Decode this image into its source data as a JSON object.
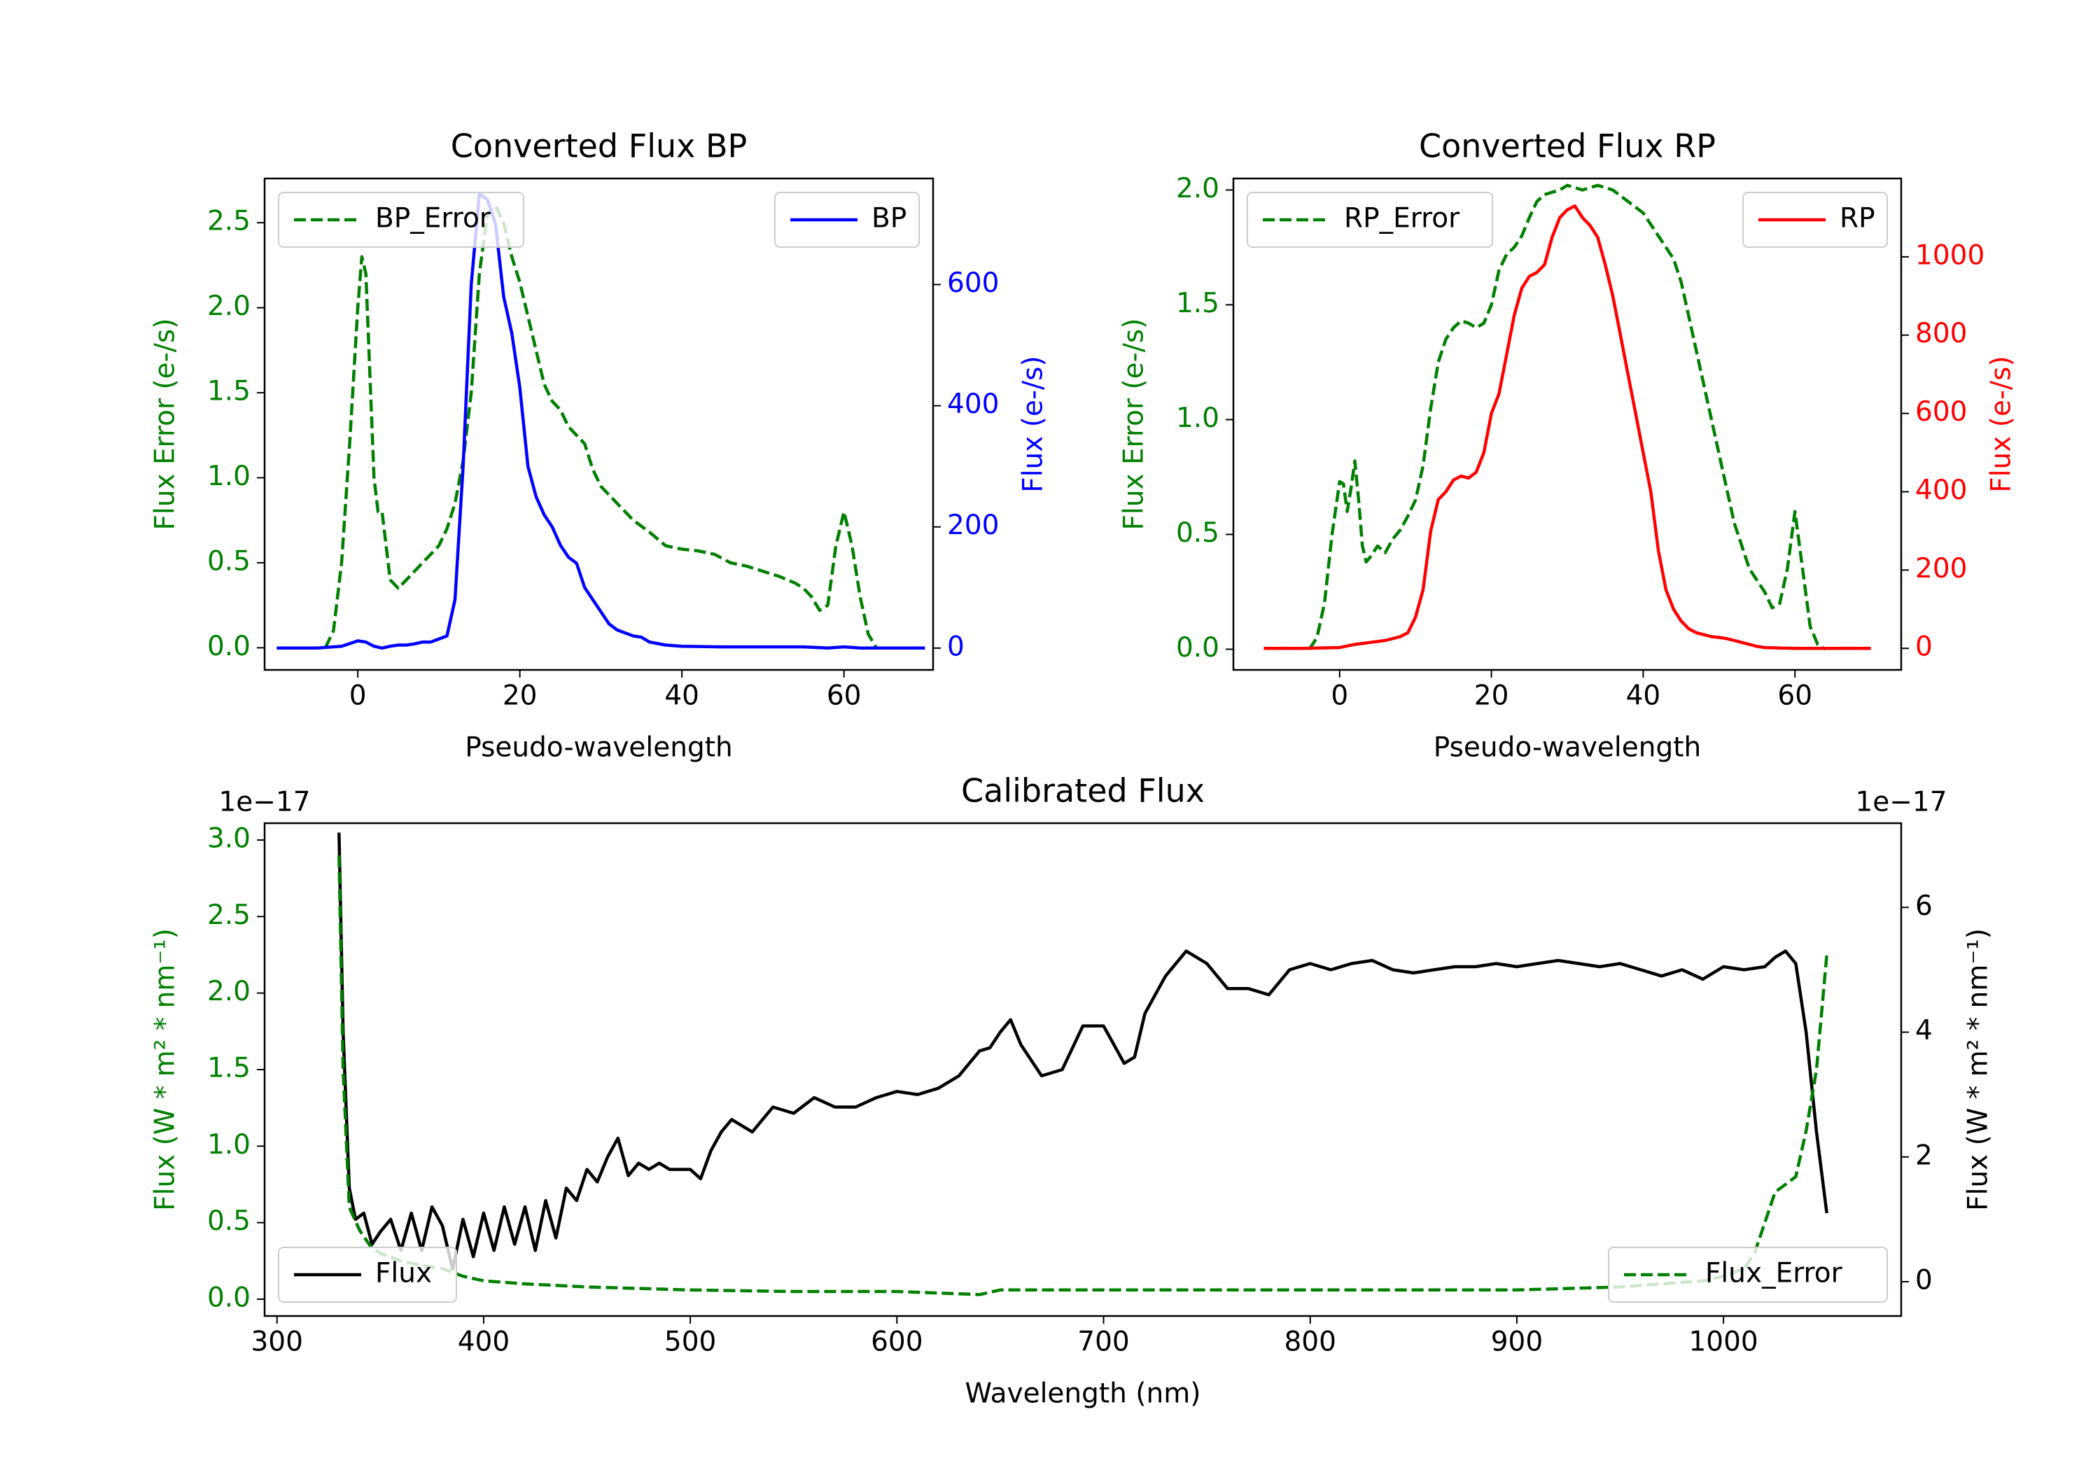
{
  "colors": {
    "error": "#008000",
    "bp": "#0000ff",
    "rp": "#ff0000",
    "flux": "#000000",
    "axis": "#000000",
    "background": "#ffffff"
  },
  "chart_data": [
    {
      "id": "bp",
      "type": "line",
      "title": "Converted Flux BP",
      "xlabel": "Pseudo-wavelength",
      "ylabel_left": "Flux Error (e-/s)",
      "ylabel_right": "Flux (e-/s)",
      "xlim": [
        -11.5,
        71
      ],
      "ylim_left": [
        -0.13,
        2.76
      ],
      "ylim_right": [
        -36,
        775
      ],
      "xticks": [
        0,
        20,
        40,
        60
      ],
      "yticks_left": [
        0.0,
        0.5,
        1.0,
        1.5,
        2.0,
        2.5
      ],
      "yticks_right": [
        0,
        200,
        400,
        600
      ],
      "legend_left": {
        "label": "BP_Error",
        "placement": "upper-left"
      },
      "legend_right": {
        "label": "BP",
        "placement": "upper-right"
      },
      "series": [
        {
          "name": "BP_Error",
          "axis": "left",
          "style": "dashed",
          "color_key": "error",
          "x": [
            -4,
            -3,
            -2,
            -1,
            0,
            0.5,
            1,
            1.5,
            2,
            2.5,
            3,
            3.5,
            4,
            5,
            6,
            7,
            8,
            9,
            10,
            11,
            12,
            13,
            14,
            15,
            16,
            17,
            18,
            19,
            20,
            21,
            22,
            23,
            24,
            25,
            26,
            27,
            28,
            29,
            30,
            32,
            34,
            36,
            38,
            40,
            42,
            44,
            46,
            48,
            50,
            52,
            54,
            55,
            56,
            57,
            58,
            59,
            60,
            61,
            62,
            63,
            64
          ],
          "y": [
            0.0,
            0.1,
            0.5,
            1.2,
            2.0,
            2.3,
            2.2,
            1.6,
            1.0,
            0.8,
            0.8,
            0.6,
            0.4,
            0.35,
            0.4,
            0.45,
            0.5,
            0.55,
            0.6,
            0.7,
            0.85,
            1.1,
            1.5,
            2.2,
            2.55,
            2.6,
            2.5,
            2.3,
            2.15,
            1.95,
            1.75,
            1.55,
            1.45,
            1.4,
            1.3,
            1.25,
            1.2,
            1.05,
            0.95,
            0.85,
            0.75,
            0.68,
            0.6,
            0.58,
            0.57,
            0.55,
            0.5,
            0.48,
            0.45,
            0.42,
            0.38,
            0.35,
            0.3,
            0.22,
            0.25,
            0.6,
            0.8,
            0.6,
            0.3,
            0.08,
            0.0
          ]
        },
        {
          "name": "BP",
          "axis": "right",
          "style": "solid",
          "color_key": "bp",
          "x": [
            -10,
            -5,
            -2,
            0,
            1,
            2,
            3,
            4,
            5,
            6,
            7,
            8,
            9,
            10,
            11,
            12,
            13,
            14,
            15,
            16,
            17,
            18,
            19,
            20,
            21,
            22,
            23,
            24,
            25,
            26,
            27,
            28,
            29,
            30,
            31,
            32,
            33,
            34,
            35,
            36,
            38,
            40,
            45,
            50,
            55,
            58,
            60,
            62,
            65,
            70
          ],
          "y": [
            0,
            0,
            3,
            12,
            10,
            3,
            0,
            3,
            5,
            5,
            7,
            10,
            10,
            15,
            20,
            80,
            300,
            600,
            750,
            740,
            700,
            580,
            520,
            430,
            300,
            250,
            220,
            200,
            170,
            150,
            140,
            100,
            80,
            60,
            40,
            30,
            25,
            20,
            18,
            10,
            5,
            3,
            2,
            2,
            2,
            0,
            2,
            0,
            0,
            0
          ]
        }
      ]
    },
    {
      "id": "rp",
      "type": "line",
      "title": "Converted Flux RP",
      "xlabel": "Pseudo-wavelength",
      "ylabel_left": "Flux Error (e-/s)",
      "ylabel_right": "Flux (e-/s)",
      "xlim": [
        -14,
        74
      ],
      "ylim_left": [
        -0.09,
        2.05
      ],
      "ylim_right": [
        -55,
        1200
      ],
      "xticks": [
        0,
        20,
        40,
        60
      ],
      "yticks_left": [
        0.0,
        0.5,
        1.0,
        1.5,
        2.0
      ],
      "yticks_right": [
        0,
        200,
        400,
        600,
        800,
        1000
      ],
      "legend_left": {
        "label": "RP_Error",
        "placement": "upper-left"
      },
      "legend_right": {
        "label": "RP",
        "placement": "upper-right"
      },
      "series": [
        {
          "name": "RP_Error",
          "axis": "left",
          "style": "dashed",
          "color_key": "error",
          "x": [
            -4,
            -3,
            -2,
            -1,
            0,
            0.5,
            1,
            1.5,
            2,
            2.5,
            3,
            3.5,
            4,
            5,
            6,
            7,
            8,
            9,
            10,
            11,
            12,
            13,
            14,
            15,
            16,
            17,
            18,
            19,
            20,
            21,
            22,
            23,
            24,
            25,
            26,
            27,
            28,
            29,
            30,
            32,
            34,
            36,
            38,
            40,
            42,
            44,
            45,
            46,
            47,
            48,
            49,
            50,
            52,
            54,
            56,
            57,
            58,
            59,
            60,
            61,
            62,
            63,
            64
          ],
          "y": [
            0.0,
            0.05,
            0.2,
            0.5,
            0.73,
            0.72,
            0.6,
            0.7,
            0.82,
            0.65,
            0.45,
            0.38,
            0.4,
            0.45,
            0.42,
            0.48,
            0.52,
            0.58,
            0.65,
            0.8,
            1.05,
            1.25,
            1.35,
            1.4,
            1.43,
            1.42,
            1.4,
            1.42,
            1.5,
            1.65,
            1.72,
            1.75,
            1.8,
            1.88,
            1.95,
            1.98,
            1.99,
            2.0,
            2.02,
            2.0,
            2.02,
            2.0,
            1.95,
            1.9,
            1.8,
            1.7,
            1.6,
            1.45,
            1.3,
            1.15,
            1.0,
            0.85,
            0.55,
            0.35,
            0.25,
            0.18,
            0.2,
            0.35,
            0.6,
            0.35,
            0.1,
            0.02,
            0.0
          ]
        },
        {
          "name": "RP",
          "axis": "right",
          "style": "solid",
          "color_key": "rp",
          "x": [
            -10,
            -5,
            0,
            2,
            4,
            6,
            8,
            9,
            10,
            11,
            12,
            13,
            14,
            15,
            16,
            17,
            18,
            19,
            20,
            21,
            22,
            23,
            24,
            25,
            26,
            27,
            28,
            29,
            30,
            31,
            32,
            33,
            34,
            35,
            36,
            37,
            38,
            39,
            40,
            41,
            42,
            43,
            44,
            45,
            46,
            47,
            48,
            49,
            50,
            51,
            52,
            53,
            54,
            55,
            56,
            58,
            60,
            62,
            65,
            70
          ],
          "y": [
            0,
            0,
            2,
            10,
            15,
            20,
            30,
            40,
            80,
            150,
            300,
            380,
            400,
            430,
            440,
            435,
            450,
            500,
            600,
            650,
            750,
            850,
            920,
            950,
            960,
            980,
            1050,
            1100,
            1120,
            1130,
            1100,
            1080,
            1050,
            980,
            900,
            800,
            700,
            600,
            500,
            400,
            250,
            150,
            100,
            70,
            50,
            40,
            35,
            30,
            28,
            25,
            20,
            15,
            10,
            5,
            2,
            1,
            0,
            0,
            0,
            0
          ]
        }
      ]
    },
    {
      "id": "calibrated",
      "type": "line",
      "title": "Calibrated Flux",
      "xlabel": "Wavelength (nm)",
      "ylabel_left": "Flux (W * m² * nm⁻¹)",
      "ylabel_right": "Flux (W * m² * nm⁻¹)",
      "offset_left": "1e−17",
      "offset_right": "1e−17",
      "xlim": [
        294,
        1086
      ],
      "ylim_left": [
        -0.11,
        3.11
      ],
      "ylim_right": [
        -0.55,
        7.35
      ],
      "xticks": [
        300,
        400,
        500,
        600,
        700,
        800,
        900,
        1000
      ],
      "yticks_left": [
        0.0,
        0.5,
        1.0,
        1.5,
        2.0,
        2.5,
        3.0
      ],
      "yticks_right": [
        0,
        2,
        4,
        6
      ],
      "legend_left": {
        "label": "Flux",
        "placement": "lower-left"
      },
      "legend_right": {
        "label": "Flux_Error",
        "placement": "lower-right"
      },
      "series": [
        {
          "name": "Flux",
          "axis": "right",
          "style": "solid",
          "color_key": "flux",
          "x": [
            330,
            332,
            335,
            338,
            342,
            346,
            350,
            355,
            360,
            365,
            370,
            375,
            380,
            385,
            390,
            395,
            400,
            405,
            410,
            415,
            420,
            425,
            430,
            435,
            440,
            445,
            450,
            455,
            460,
            465,
            470,
            475,
            480,
            485,
            490,
            495,
            500,
            505,
            510,
            515,
            520,
            530,
            540,
            550,
            560,
            570,
            580,
            590,
            600,
            610,
            620,
            630,
            640,
            645,
            650,
            655,
            660,
            670,
            680,
            690,
            700,
            705,
            710,
            715,
            720,
            730,
            740,
            750,
            760,
            770,
            780,
            790,
            800,
            810,
            820,
            830,
            840,
            850,
            860,
            870,
            880,
            890,
            900,
            910,
            920,
            930,
            940,
            950,
            960,
            970,
            980,
            990,
            1000,
            1010,
            1020,
            1025,
            1030,
            1035,
            1040,
            1045,
            1050
          ],
          "y": [
            7.2,
            4.0,
            1.5,
            1.0,
            1.1,
            0.6,
            0.8,
            1.0,
            0.5,
            1.1,
            0.5,
            1.2,
            0.9,
            0.2,
            1.0,
            0.4,
            1.1,
            0.5,
            1.2,
            0.6,
            1.2,
            0.5,
            1.3,
            0.7,
            1.5,
            1.3,
            1.8,
            1.6,
            2.0,
            2.3,
            1.7,
            1.9,
            1.8,
            1.9,
            1.8,
            1.8,
            1.8,
            1.65,
            2.1,
            2.4,
            2.6,
            2.4,
            2.8,
            2.7,
            2.95,
            2.8,
            2.8,
            2.95,
            3.05,
            3.0,
            3.1,
            3.3,
            3.7,
            3.75,
            4.0,
            4.2,
            3.8,
            3.3,
            3.4,
            4.1,
            4.1,
            3.8,
            3.5,
            3.6,
            4.3,
            4.9,
            5.3,
            5.1,
            4.7,
            4.7,
            4.6,
            5.0,
            5.1,
            5.0,
            5.1,
            5.15,
            5.0,
            4.95,
            5.0,
            5.05,
            5.05,
            5.1,
            5.05,
            5.1,
            5.15,
            5.1,
            5.05,
            5.1,
            5.0,
            4.9,
            5.0,
            4.85,
            5.05,
            5.0,
            5.05,
            5.2,
            5.3,
            5.1,
            4.0,
            2.4,
            1.1
          ]
        },
        {
          "name": "Flux_Error",
          "axis": "left",
          "style": "dashed",
          "color_key": "error",
          "x": [
            330,
            332,
            335,
            340,
            345,
            350,
            360,
            370,
            380,
            390,
            400,
            420,
            450,
            500,
            550,
            600,
            640,
            650,
            700,
            800,
            900,
            950,
            970,
            990,
            1000,
            1010,
            1015,
            1020,
            1025,
            1030,
            1035,
            1040,
            1045,
            1050
          ],
          "y": [
            2.9,
            1.5,
            0.6,
            0.45,
            0.35,
            0.3,
            0.25,
            0.22,
            0.2,
            0.15,
            0.12,
            0.1,
            0.08,
            0.06,
            0.05,
            0.05,
            0.03,
            0.06,
            0.06,
            0.06,
            0.06,
            0.08,
            0.1,
            0.12,
            0.15,
            0.2,
            0.3,
            0.5,
            0.7,
            0.75,
            0.8,
            1.1,
            1.5,
            2.25
          ]
        }
      ]
    }
  ]
}
